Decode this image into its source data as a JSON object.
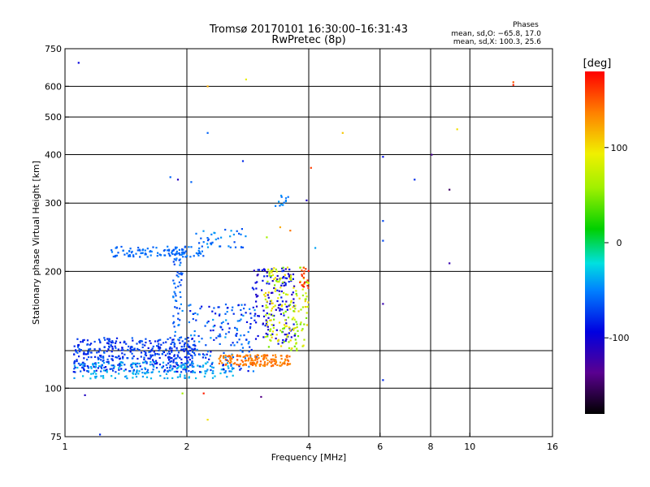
{
  "chart_data": {
    "type": "scatter",
    "title": "Tromsø 20170101 16:30:00–16:31:43",
    "subtitle": "RwPretec (8p)",
    "xlabel": "Frequency [MHz]",
    "ylabel": "Stationary phase Virtual Height [km]",
    "x_scale": "log",
    "y_scale": "log",
    "xlim": [
      1,
      16
    ],
    "ylim": [
      75,
      750
    ],
    "x_ticks": [
      {
        "value": 1,
        "label": "1"
      },
      {
        "value": 2,
        "label": "2"
      },
      {
        "value": 4,
        "label": "4"
      },
      {
        "value": 6,
        "label": "6"
      },
      {
        "value": 8,
        "label": "8"
      },
      {
        "value": 10,
        "label": "10"
      },
      {
        "value": 16,
        "label": "16"
      }
    ],
    "x_gridlines": [
      2,
      4,
      6,
      8,
      10
    ],
    "y_ticks": [
      {
        "value": 75,
        "label": "75"
      },
      {
        "value": 100,
        "label": "100"
      },
      {
        "value": 200,
        "label": "200"
      },
      {
        "value": 300,
        "label": "300"
      },
      {
        "value": 400,
        "label": "400"
      },
      {
        "value": 500,
        "label": "500"
      },
      {
        "value": 600,
        "label": "600"
      },
      {
        "value": 750,
        "label": "750"
      }
    ],
    "y_gridlines": [
      100,
      125,
      200,
      300,
      400,
      500,
      600
    ],
    "legend": {
      "heading": "Phases",
      "line1": "mean, sd,O: −65.8, 17.0",
      "line2": "mean, sd,X: 100.3, 25.6"
    },
    "colorbar": {
      "label": "[deg]",
      "range": [
        -180,
        180
      ],
      "ticks": [
        {
          "value": 100,
          "label": "100"
        },
        {
          "value": 0,
          "label": "0"
        },
        {
          "value": -100,
          "label": "-100"
        }
      ]
    },
    "traces": [
      {
        "name": "low-layer-blue-band",
        "f0": 1.05,
        "f1": 2.1,
        "h0": 110,
        "h1": 135,
        "phase0": -90,
        "phase1": -60,
        "count": 420
      },
      {
        "name": "low-layer-cyan-floor",
        "f0": 1.05,
        "f1": 2.6,
        "h0": 106,
        "h1": 117,
        "phase0": -45,
        "phase1": -30,
        "count": 160
      },
      {
        "name": "low-layer-mid",
        "f0": 2.0,
        "f1": 3.0,
        "h0": 110,
        "h1": 165,
        "phase0": -95,
        "phase1": -40,
        "count": 170
      },
      {
        "name": "trace-dark-blue-upper",
        "f0": 2.9,
        "f1": 3.7,
        "h0": 130,
        "h1": 205,
        "phase0": -115,
        "phase1": -80,
        "count": 140
      },
      {
        "name": "orange-ridge",
        "f0": 2.4,
        "f1": 3.6,
        "h0": 114,
        "h1": 122,
        "phase0": 130,
        "phase1": 150,
        "count": 150
      },
      {
        "name": "yellow-green-cusp",
        "f0": 3.1,
        "f1": 4.0,
        "h0": 125,
        "h1": 205,
        "phase0": 40,
        "phase1": 110,
        "count": 170
      },
      {
        "name": "red-cusp-edge",
        "f0": 3.8,
        "f1": 4.0,
        "h0": 180,
        "h1": 205,
        "phase0": 150,
        "phase1": 175,
        "count": 18
      },
      {
        "name": "f-layer-cyan-band",
        "f0": 1.3,
        "f1": 2.2,
        "h0": 218,
        "h1": 232,
        "phase0": -65,
        "phase1": -50,
        "count": 110
      },
      {
        "name": "f-layer-rising",
        "f0": 2.1,
        "f1": 2.8,
        "h0": 230,
        "h1": 260,
        "phase0": -70,
        "phase1": -40,
        "count": 40
      },
      {
        "name": "f-layer-near-vertical",
        "f0": 1.85,
        "f1": 1.95,
        "h0": 130,
        "h1": 230,
        "phase0": -75,
        "phase1": -45,
        "count": 60
      },
      {
        "name": "upper-cyan-cluster",
        "f0": 3.3,
        "f1": 3.6,
        "h0": 295,
        "h1": 315,
        "phase0": -60,
        "phase1": -40,
        "count": 12
      }
    ],
    "points": [
      {
        "f": 1.08,
        "h": 690,
        "phase": -95
      },
      {
        "f": 2.25,
        "h": 600,
        "phase": 120
      },
      {
        "f": 2.8,
        "h": 625,
        "phase": 90
      },
      {
        "f": 2.25,
        "h": 455,
        "phase": -60
      },
      {
        "f": 2.75,
        "h": 385,
        "phase": -80
      },
      {
        "f": 1.82,
        "h": 350,
        "phase": -60
      },
      {
        "f": 1.9,
        "h": 345,
        "phase": -110
      },
      {
        "f": 2.05,
        "h": 340,
        "phase": -60
      },
      {
        "f": 4.05,
        "h": 370,
        "phase": 160
      },
      {
        "f": 3.95,
        "h": 305,
        "phase": -110
      },
      {
        "f": 4.85,
        "h": 455,
        "phase": 110
      },
      {
        "f": 6.1,
        "h": 395,
        "phase": -90
      },
      {
        "f": 6.1,
        "h": 270,
        "phase": -70
      },
      {
        "f": 6.1,
        "h": 240,
        "phase": -70
      },
      {
        "f": 6.1,
        "h": 165,
        "phase": -120
      },
      {
        "f": 6.1,
        "h": 105,
        "phase": -80
      },
      {
        "f": 7.3,
        "h": 345,
        "phase": -80
      },
      {
        "f": 8.05,
        "h": 400,
        "phase": -130
      },
      {
        "f": 8.9,
        "h": 325,
        "phase": -150
      },
      {
        "f": 8.9,
        "h": 210,
        "phase": -120
      },
      {
        "f": 9.3,
        "h": 465,
        "phase": 100
      },
      {
        "f": 12.8,
        "h": 615,
        "phase": 150
      },
      {
        "f": 12.8,
        "h": 605,
        "phase": 170
      },
      {
        "f": 1.12,
        "h": 96,
        "phase": -110
      },
      {
        "f": 1.22,
        "h": 76,
        "phase": -80
      },
      {
        "f": 1.95,
        "h": 97,
        "phase": 60
      },
      {
        "f": 2.2,
        "h": 97,
        "phase": 170
      },
      {
        "f": 2.25,
        "h": 83,
        "phase": 100
      },
      {
        "f": 3.05,
        "h": 95,
        "phase": -140
      },
      {
        "f": 3.4,
        "h": 260,
        "phase": 120
      },
      {
        "f": 3.6,
        "h": 255,
        "phase": 140
      },
      {
        "f": 3.15,
        "h": 245,
        "phase": 60
      },
      {
        "f": 4.15,
        "h": 230,
        "phase": -40
      }
    ]
  }
}
